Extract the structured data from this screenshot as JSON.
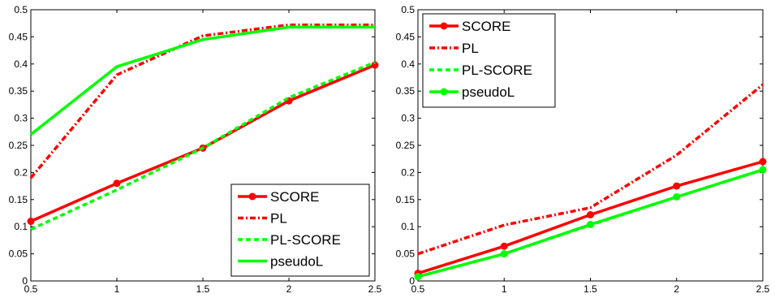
{
  "chart_data": [
    {
      "type": "line",
      "title": "",
      "xlabel": "",
      "ylabel": "",
      "xlim": [
        0.5,
        2.5
      ],
      "ylim": [
        0,
        0.5
      ],
      "x_ticks": [
        "0.5",
        "1",
        "1.5",
        "2",
        "2.5"
      ],
      "y_ticks": [
        "0",
        "0.05",
        "0.1",
        "0.15",
        "0.2",
        "0.25",
        "0.3",
        "0.35",
        "0.4",
        "0.45",
        "0.5"
      ],
      "grid": false,
      "legend_position": "bottom-right",
      "x": [
        0.5,
        1,
        1.5,
        2,
        2.5
      ],
      "series": [
        {
          "name": "SCORE",
          "color": "#ff0000",
          "style": "solid-marker",
          "values": [
            0.11,
            0.18,
            0.245,
            0.332,
            0.398
          ]
        },
        {
          "name": "PL",
          "color": "#ff0000",
          "style": "dashdot",
          "values": [
            0.19,
            0.38,
            0.452,
            0.472,
            0.472
          ]
        },
        {
          "name": "PL-SCORE",
          "color": "#00ff00",
          "style": "dashed",
          "values": [
            0.095,
            0.168,
            0.245,
            0.338,
            0.403
          ]
        },
        {
          "name": "pseudoL",
          "color": "#00ff00",
          "style": "solid",
          "values": [
            0.27,
            0.395,
            0.445,
            0.468,
            0.468
          ]
        }
      ]
    },
    {
      "type": "line",
      "title": "",
      "xlabel": "",
      "ylabel": "",
      "xlim": [
        0.5,
        2.5
      ],
      "ylim": [
        0,
        0.5
      ],
      "x_ticks": [
        "0.5",
        "1",
        "1.5",
        "2",
        "2.5"
      ],
      "y_ticks": [
        "0",
        "0.05",
        "0.1",
        "0.15",
        "0.2",
        "0.25",
        "0.3",
        "0.35",
        "0.4",
        "0.45",
        "0.5"
      ],
      "grid": false,
      "legend_position": "top-left",
      "x": [
        0.5,
        1,
        1.5,
        2,
        2.5
      ],
      "series": [
        {
          "name": "SCORE",
          "color": "#ff0000",
          "style": "solid-marker",
          "values": [
            0.014,
            0.064,
            0.122,
            0.175,
            0.22
          ]
        },
        {
          "name": "PL",
          "color": "#ff0000",
          "style": "dashdot",
          "values": [
            0.05,
            0.103,
            0.135,
            0.232,
            0.362
          ]
        },
        {
          "name": "PL-SCORE",
          "color": "#00ff00",
          "style": "dashed",
          "values": [
            0.008,
            0.05,
            0.103,
            0.155,
            0.205
          ]
        },
        {
          "name": "pseudoL",
          "color": "#00ff00",
          "style": "solid-marker",
          "values": [
            0.008,
            0.05,
            0.104,
            0.155,
            0.205
          ]
        }
      ]
    }
  ]
}
